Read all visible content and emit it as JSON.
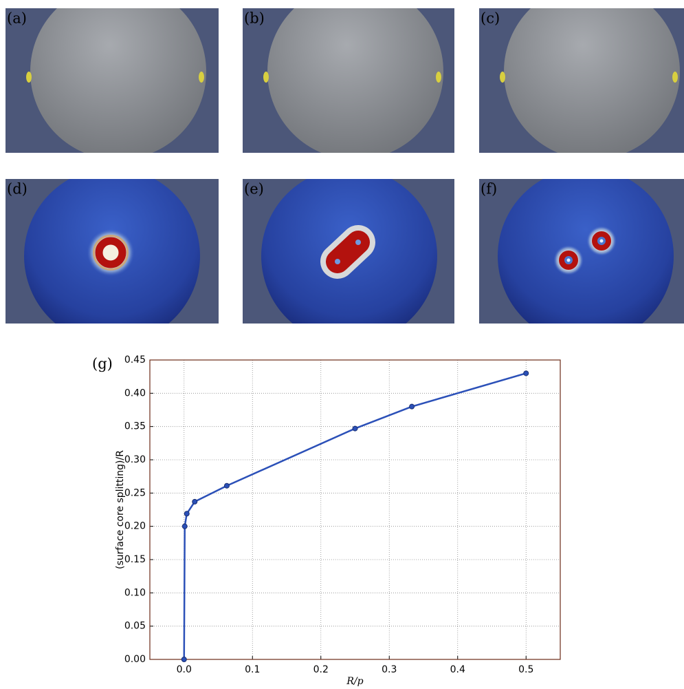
{
  "panels": [
    {
      "label": "(a)"
    },
    {
      "label": "(b)"
    },
    {
      "label": "(c)"
    },
    {
      "label": "(d)"
    },
    {
      "label": "(e)"
    },
    {
      "label": "(f)"
    }
  ],
  "chart_data": {
    "type": "line",
    "panel_label": "(g)",
    "x_label": "R/p",
    "y_label": "(surface core splitting)/R",
    "x": [
      0,
      0.001,
      0.004,
      0.0156,
      0.0625,
      0.25,
      0.333,
      0.5
    ],
    "series": [
      {
        "color": "#2b50b8",
        "values": [
          0,
          0.2,
          0.219,
          0.237,
          0.261,
          0.347,
          0.38,
          0.43
        ]
      }
    ],
    "xlim": [
      -0.05,
      0.55
    ],
    "xticks": [
      {
        "value": 0,
        "label": "0.0"
      },
      0.1,
      0.2,
      0.3,
      0.4,
      0.5
    ],
    "ylim": [
      0,
      0.45
    ],
    "yticks": [
      {
        "value": 0,
        "label": "0.00"
      },
      0.05,
      {
        "value": 0.1,
        "label": "0.10"
      },
      0.15,
      {
        "value": 0.2,
        "label": "0.20"
      },
      0.25,
      {
        "value": 0.3,
        "label": "0.30"
      },
      0.35,
      {
        "value": 0.4,
        "label": "0.40"
      },
      0.45
    ],
    "grid": true
  }
}
